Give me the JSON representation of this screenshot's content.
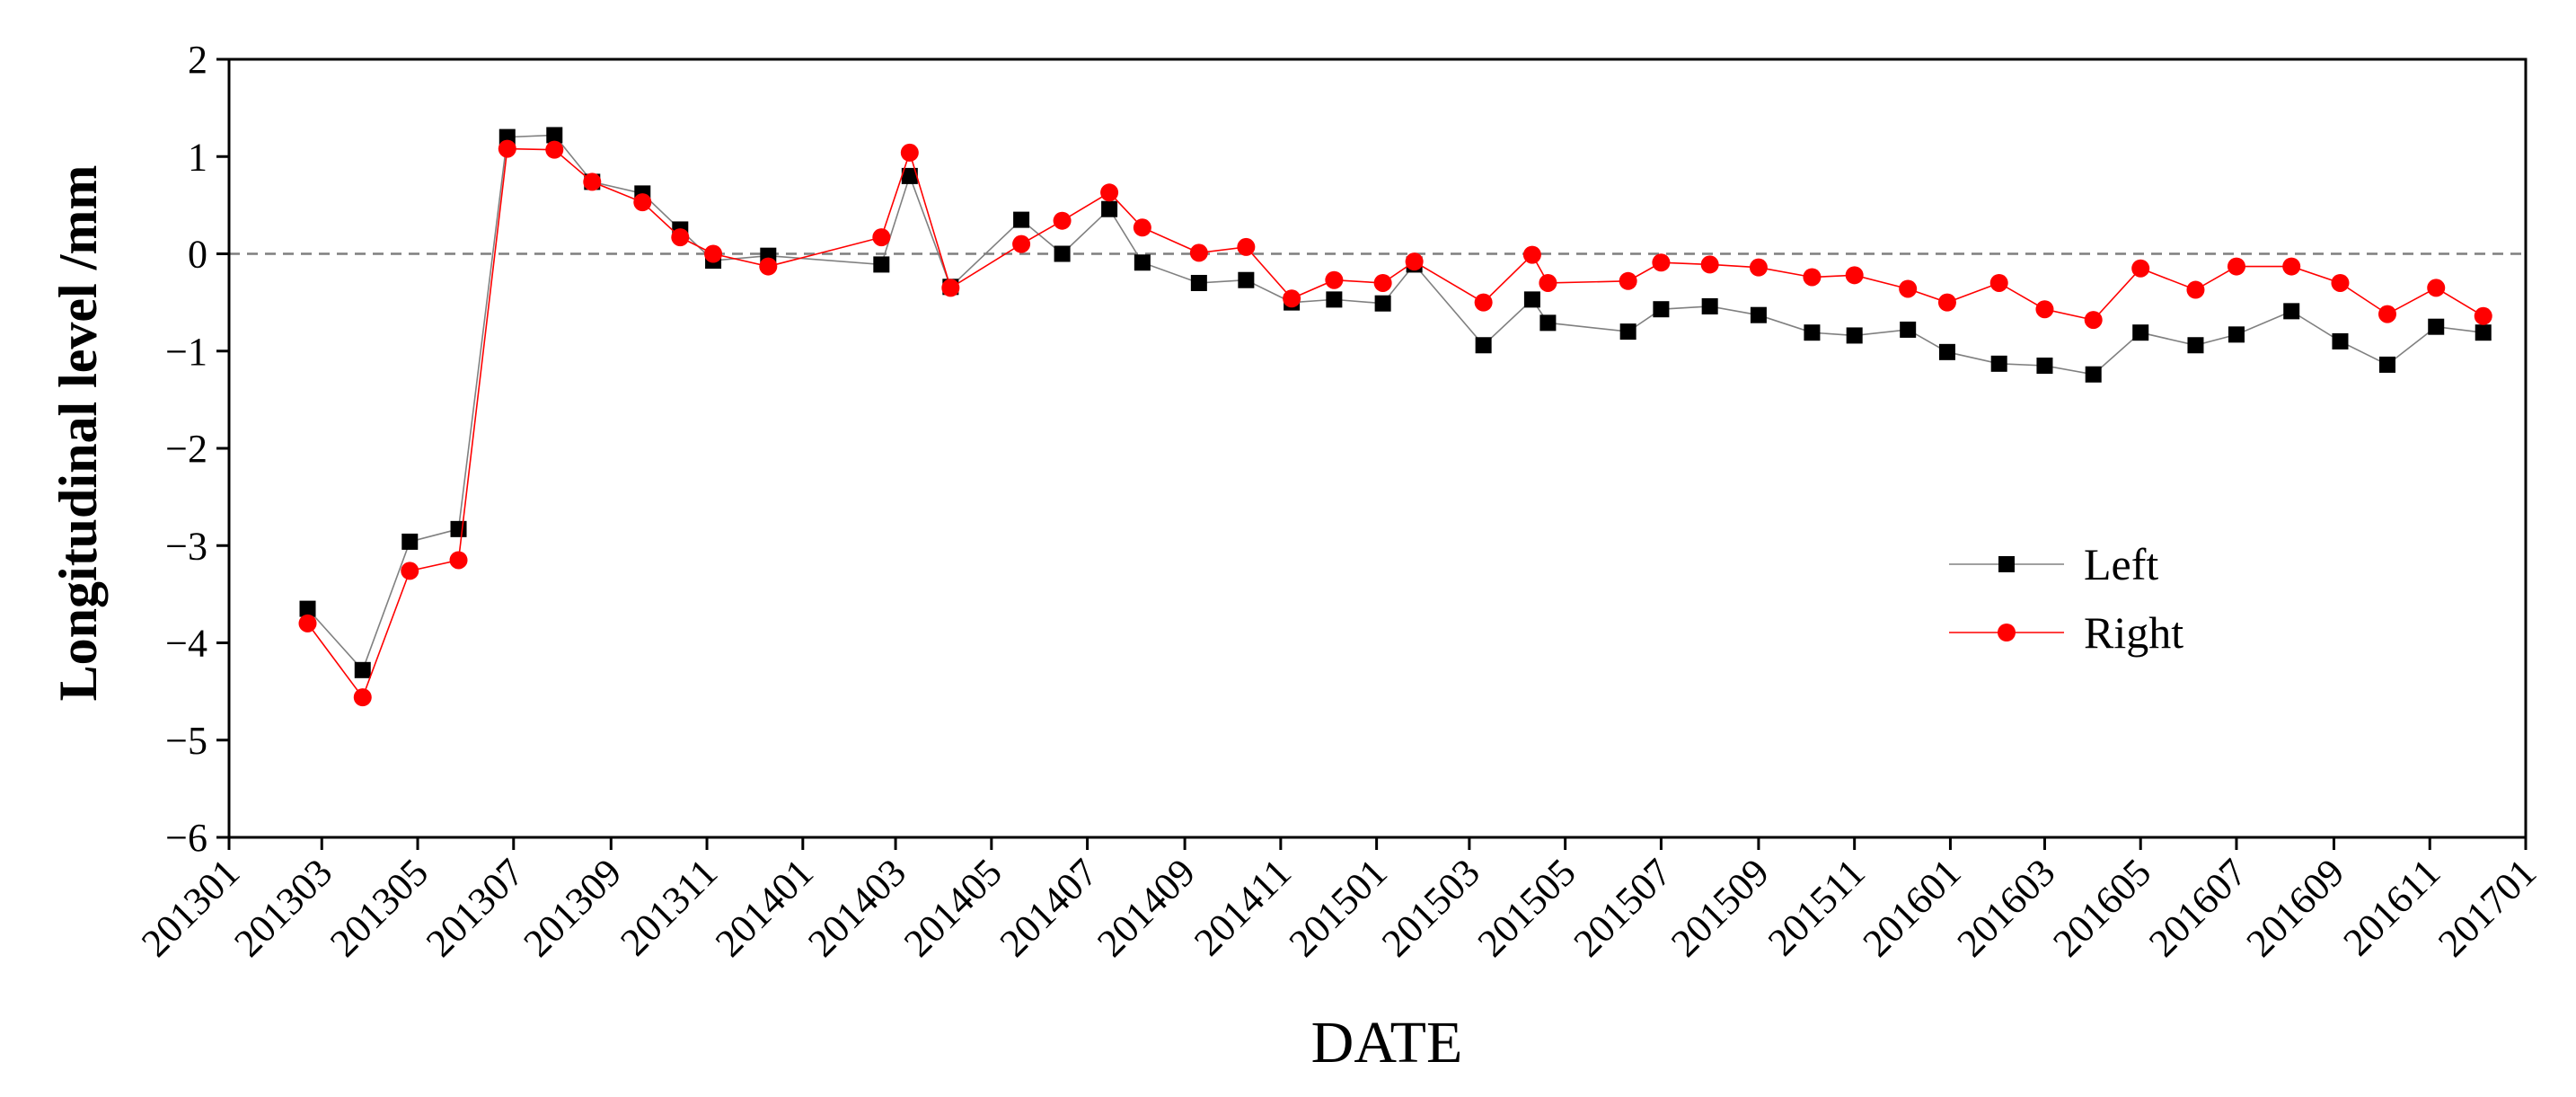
{
  "chart_data": {
    "type": "line",
    "title": "",
    "xlabel": "DATE",
    "ylabel": "Longitudinal level /mm",
    "ylim": [
      -6,
      2
    ],
    "yticks": [
      2,
      1,
      0,
      -1,
      -2,
      -3,
      -4,
      -5,
      -6
    ],
    "yticklabels": [
      "2",
      "1",
      "0",
      "−1",
      "−2",
      "−3",
      "−4",
      "−5",
      "−6"
    ],
    "xlim": [
      "2013-01-01",
      "2017-01-01"
    ],
    "xticks": [
      "2013-01-01",
      "2013-03-01",
      "2013-05-01",
      "2013-07-01",
      "2013-09-01",
      "2013-11-01",
      "2014-01-01",
      "2014-03-01",
      "2014-05-01",
      "2014-07-01",
      "2014-09-01",
      "2014-11-01",
      "2015-01-01",
      "2015-03-01",
      "2015-05-01",
      "2015-07-01",
      "2015-09-01",
      "2015-11-01",
      "2016-01-01",
      "2016-03-01",
      "2016-05-01",
      "2016-07-01",
      "2016-09-01",
      "2016-11-01",
      "2017-01-01"
    ],
    "xticklabels": [
      "201301",
      "201303",
      "201305",
      "201307",
      "201309",
      "201311",
      "201401",
      "201403",
      "201405",
      "201407",
      "201409",
      "201411",
      "201501",
      "201503",
      "201505",
      "201507",
      "201509",
      "201511",
      "201601",
      "201603",
      "201605",
      "201607",
      "201609",
      "201611",
      "201701"
    ],
    "zero_line": {
      "y": 0,
      "style": "dashed",
      "color": "#7f7f7f"
    },
    "legend": {
      "position": "center-right"
    },
    "grid": false,
    "series": [
      {
        "name": "Left",
        "marker": "square",
        "color": "#000000",
        "line_color": "#808080",
        "points": [
          [
            "2013-02-20",
            -3.65
          ],
          [
            "2013-03-27",
            -4.28
          ],
          [
            "2013-04-26",
            -2.96
          ],
          [
            "2013-05-27",
            -2.83
          ],
          [
            "2013-06-27",
            1.2
          ],
          [
            "2013-07-27",
            1.22
          ],
          [
            "2013-08-20",
            0.74
          ],
          [
            "2013-09-21",
            0.62
          ],
          [
            "2013-10-15",
            0.25
          ],
          [
            "2013-11-05",
            -0.07
          ],
          [
            "2013-12-10",
            -0.02
          ],
          [
            "2014-02-20",
            -0.11
          ],
          [
            "2014-03-10",
            0.8
          ],
          [
            "2014-04-05",
            -0.34
          ],
          [
            "2014-05-20",
            0.35
          ],
          [
            "2014-06-15",
            0.0
          ],
          [
            "2014-07-15",
            0.46
          ],
          [
            "2014-08-05",
            -0.09
          ],
          [
            "2014-09-10",
            -0.3
          ],
          [
            "2014-10-10",
            -0.27
          ],
          [
            "2014-11-08",
            -0.5
          ],
          [
            "2014-12-05",
            -0.47
          ],
          [
            "2015-01-05",
            -0.51
          ],
          [
            "2015-01-25",
            -0.11
          ],
          [
            "2015-03-10",
            -0.94
          ],
          [
            "2015-04-10",
            -0.47
          ],
          [
            "2015-04-20",
            -0.71
          ],
          [
            "2015-06-10",
            -0.8
          ],
          [
            "2015-07-01",
            -0.57
          ],
          [
            "2015-08-01",
            -0.54
          ],
          [
            "2015-09-01",
            -0.63
          ],
          [
            "2015-10-05",
            -0.81
          ],
          [
            "2015-11-01",
            -0.84
          ],
          [
            "2015-12-05",
            -0.78
          ],
          [
            "2015-12-30",
            -1.01
          ],
          [
            "2016-02-01",
            -1.13
          ],
          [
            "2016-03-01",
            -1.15
          ],
          [
            "2016-04-01",
            -1.24
          ],
          [
            "2016-05-01",
            -0.81
          ],
          [
            "2016-06-05",
            -0.94
          ],
          [
            "2016-07-01",
            -0.83
          ],
          [
            "2016-08-05",
            -0.59
          ],
          [
            "2016-09-05",
            -0.9
          ],
          [
            "2016-10-05",
            -1.14
          ],
          [
            "2016-11-05",
            -0.75
          ],
          [
            "2016-12-05",
            -0.81
          ]
        ]
      },
      {
        "name": "Right",
        "marker": "circle",
        "color": "#ff0000",
        "line_color": "#ff0000",
        "points": [
          [
            "2013-02-20",
            -3.8
          ],
          [
            "2013-03-27",
            -4.56
          ],
          [
            "2013-04-26",
            -3.26
          ],
          [
            "2013-05-27",
            -3.15
          ],
          [
            "2013-06-27",
            1.08
          ],
          [
            "2013-07-27",
            1.07
          ],
          [
            "2013-08-20",
            0.74
          ],
          [
            "2013-09-21",
            0.53
          ],
          [
            "2013-10-15",
            0.17
          ],
          [
            "2013-11-05",
            0.0
          ],
          [
            "2013-12-10",
            -0.13
          ],
          [
            "2014-02-20",
            0.17
          ],
          [
            "2014-03-10",
            1.04
          ],
          [
            "2014-04-05",
            -0.35
          ],
          [
            "2014-05-20",
            0.1
          ],
          [
            "2014-06-15",
            0.34
          ],
          [
            "2014-07-15",
            0.63
          ],
          [
            "2014-08-05",
            0.27
          ],
          [
            "2014-09-10",
            0.01
          ],
          [
            "2014-10-10",
            0.07
          ],
          [
            "2014-11-08",
            -0.46
          ],
          [
            "2014-12-05",
            -0.27
          ],
          [
            "2015-01-05",
            -0.3
          ],
          [
            "2015-01-25",
            -0.08
          ],
          [
            "2015-03-10",
            -0.5
          ],
          [
            "2015-04-10",
            -0.01
          ],
          [
            "2015-04-20",
            -0.3
          ],
          [
            "2015-06-10",
            -0.28
          ],
          [
            "2015-07-01",
            -0.09
          ],
          [
            "2015-08-01",
            -0.11
          ],
          [
            "2015-09-01",
            -0.14
          ],
          [
            "2015-10-05",
            -0.24
          ],
          [
            "2015-11-01",
            -0.22
          ],
          [
            "2015-12-05",
            -0.36
          ],
          [
            "2015-12-30",
            -0.5
          ],
          [
            "2016-02-01",
            -0.3
          ],
          [
            "2016-03-01",
            -0.57
          ],
          [
            "2016-04-01",
            -0.68
          ],
          [
            "2016-05-01",
            -0.15
          ],
          [
            "2016-06-05",
            -0.37
          ],
          [
            "2016-07-01",
            -0.13
          ],
          [
            "2016-08-05",
            -0.13
          ],
          [
            "2016-09-05",
            -0.3
          ],
          [
            "2016-10-05",
            -0.62
          ],
          [
            "2016-11-05",
            -0.35
          ],
          [
            "2016-12-05",
            -0.64
          ]
        ]
      }
    ]
  }
}
